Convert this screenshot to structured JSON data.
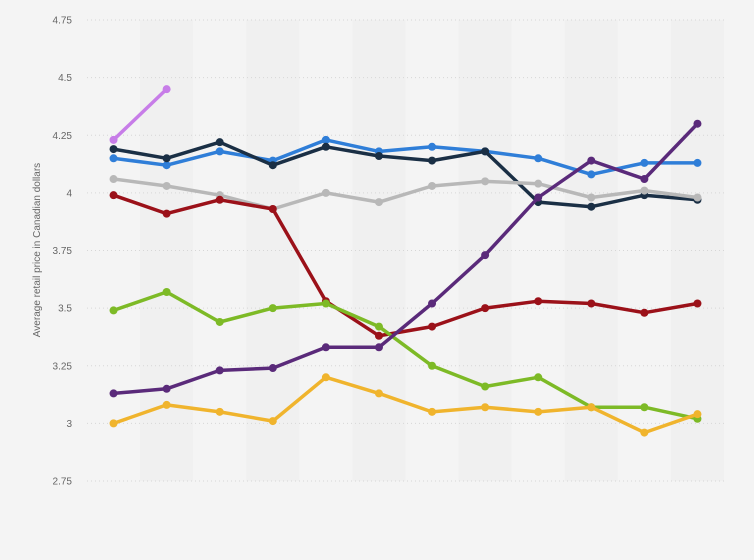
{
  "chart_data": {
    "type": "line",
    "title": "",
    "xlabel": "",
    "ylabel": "Average retail price in Canadian dollars",
    "ylim": [
      2.75,
      4.75
    ],
    "yticks": [
      "4.75",
      "4.5",
      "4.25",
      "4",
      "3.75",
      "3.5",
      "3.25",
      "3",
      "2.75"
    ],
    "x_count": 12,
    "grid": true,
    "legend": "none",
    "series": [
      {
        "color": "#c77de8",
        "values": [
          4.23,
          4.45,
          null,
          null,
          null,
          null,
          null,
          null,
          null,
          null,
          null,
          null
        ]
      },
      {
        "color": "#2f7ed8",
        "values": [
          4.15,
          4.12,
          4.18,
          4.14,
          4.23,
          4.18,
          4.2,
          4.18,
          4.15,
          4.08,
          4.13,
          4.13
        ]
      },
      {
        "color": "#1a2f45",
        "values": [
          4.19,
          4.15,
          4.22,
          4.12,
          4.2,
          4.16,
          4.14,
          4.18,
          3.96,
          3.94,
          3.99,
          3.97
        ]
      },
      {
        "color": "#b8b8b8",
        "values": [
          4.06,
          4.03,
          3.99,
          3.93,
          4.0,
          3.96,
          4.03,
          4.05,
          4.04,
          3.98,
          4.01,
          3.98
        ]
      },
      {
        "color": "#9b1119",
        "values": [
          3.99,
          3.91,
          3.97,
          3.93,
          3.53,
          3.38,
          3.42,
          3.5,
          3.53,
          3.52,
          3.48,
          3.52
        ]
      },
      {
        "color": "#7dba26",
        "values": [
          3.49,
          3.57,
          3.44,
          3.5,
          3.52,
          3.42,
          3.25,
          3.16,
          3.2,
          3.07,
          3.07,
          3.02
        ]
      },
      {
        "color": "#5a2a7a",
        "values": [
          3.13,
          3.15,
          3.23,
          3.24,
          3.33,
          3.33,
          3.52,
          3.73,
          3.98,
          4.14,
          4.06,
          4.3
        ]
      },
      {
        "color": "#f0b42d",
        "values": [
          3.0,
          3.08,
          3.05,
          3.01,
          3.2,
          3.13,
          3.05,
          3.07,
          3.05,
          3.07,
          2.96,
          3.04
        ]
      }
    ]
  }
}
